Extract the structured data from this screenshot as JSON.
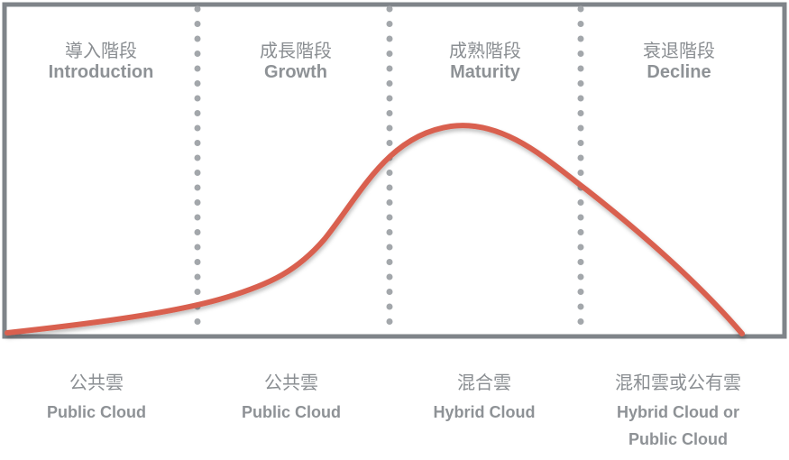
{
  "stages": [
    {
      "zh": "導入階段",
      "en": "Introduction"
    },
    {
      "zh": "成長階段",
      "en": "Growth"
    },
    {
      "zh": "成熟階段",
      "en": "Maturity"
    },
    {
      "zh": "衰退階段",
      "en": "Decline"
    }
  ],
  "clouds": [
    {
      "zh": "公共雲",
      "en": "Public Cloud"
    },
    {
      "zh": "公共雲",
      "en": "Public Cloud"
    },
    {
      "zh": "混合雲",
      "en": "Hybrid Cloud"
    },
    {
      "zh": "混和雲或公有雲",
      "en": "Hybrid Cloud or Public Cloud"
    }
  ]
}
